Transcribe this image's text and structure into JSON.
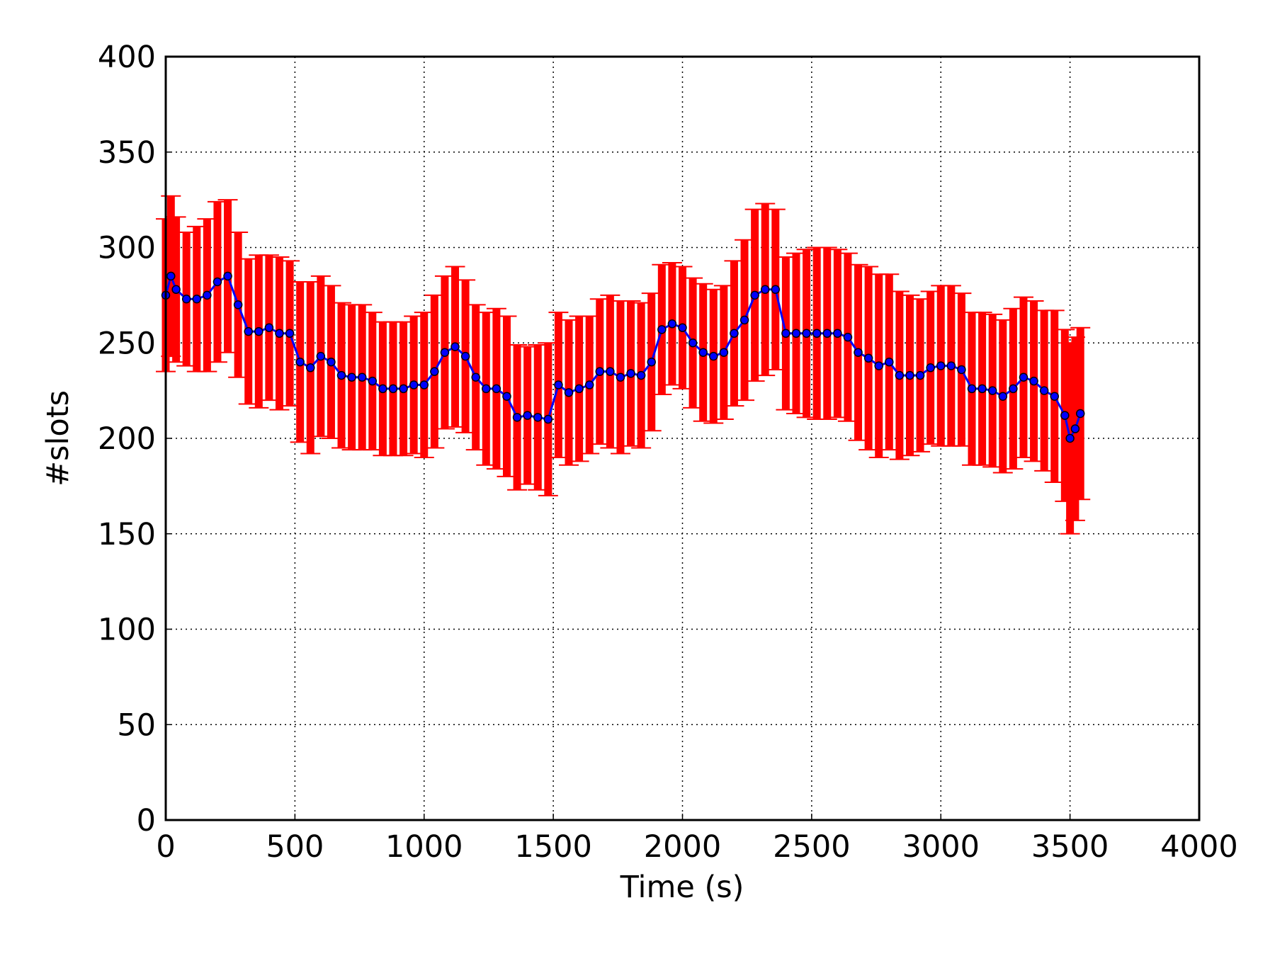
{
  "chart_data": {
    "type": "line",
    "xlabel": "Time (s)",
    "ylabel": "#slots",
    "x": [
      0,
      20,
      40,
      80,
      120,
      160,
      200,
      240,
      280,
      320,
      360,
      400,
      440,
      480,
      520,
      560,
      600,
      640,
      680,
      720,
      760,
      800,
      840,
      880,
      920,
      960,
      1000,
      1040,
      1080,
      1120,
      1160,
      1200,
      1240,
      1280,
      1320,
      1360,
      1400,
      1440,
      1480,
      1520,
      1560,
      1600,
      1640,
      1680,
      1720,
      1760,
      1800,
      1840,
      1880,
      1920,
      1960,
      2000,
      2040,
      2080,
      2120,
      2160,
      2200,
      2240,
      2280,
      2320,
      2360,
      2400,
      2440,
      2480,
      2520,
      2560,
      2600,
      2640,
      2680,
      2720,
      2760,
      2800,
      2840,
      2880,
      2920,
      2960,
      3000,
      3040,
      3080,
      3120,
      3160,
      3200,
      3240,
      3280,
      3320,
      3360,
      3400,
      3440,
      3480,
      3500,
      3520,
      3540
    ],
    "series": [
      {
        "color": "#0000ff",
        "marker_edge": "#000000",
        "error_color": "#ff0000",
        "values": [
          275,
          285,
          278,
          273,
          273,
          275,
          282,
          285,
          270,
          256,
          256,
          258,
          255,
          255,
          240,
          237,
          243,
          240,
          233,
          232,
          232,
          230,
          226,
          226,
          226,
          228,
          228,
          235,
          245,
          248,
          243,
          232,
          226,
          226,
          222,
          211,
          212,
          211,
          210,
          228,
          224,
          226,
          228,
          235,
          235,
          232,
          234,
          233,
          240,
          257,
          260,
          258,
          250,
          245,
          243,
          245,
          255,
          262,
          275,
          278,
          278,
          255,
          255,
          255,
          255,
          255,
          255,
          253,
          245,
          242,
          238,
          240,
          233,
          233,
          233,
          237,
          238,
          238,
          236,
          226,
          226,
          225,
          222,
          226,
          232,
          230,
          225,
          222,
          212,
          200,
          205,
          213
        ],
        "errors": [
          40,
          42,
          38,
          35,
          38,
          40,
          42,
          40,
          38,
          38,
          40,
          38,
          40,
          38,
          42,
          45,
          42,
          40,
          38,
          38,
          38,
          36,
          35,
          35,
          35,
          36,
          38,
          40,
          40,
          42,
          40,
          38,
          40,
          42,
          42,
          38,
          36,
          38,
          40,
          38,
          38,
          38,
          36,
          38,
          40,
          40,
          38,
          38,
          36,
          34,
          32,
          32,
          34,
          36,
          35,
          35,
          38,
          42,
          45,
          45,
          42,
          40,
          42,
          44,
          45,
          45,
          44,
          44,
          46,
          48,
          48,
          46,
          44,
          42,
          40,
          40,
          42,
          42,
          40,
          40,
          40,
          40,
          40,
          42,
          42,
          42,
          42,
          45,
          45,
          50,
          48,
          45
        ]
      }
    ],
    "xlim": [
      0,
      4000
    ],
    "xticks": [
      0,
      500,
      1000,
      1500,
      2000,
      2500,
      3000,
      3500,
      4000
    ],
    "ylim": [
      0,
      400
    ],
    "yticks": [
      0,
      50,
      100,
      150,
      200,
      250,
      300,
      350,
      400
    ],
    "grid": true
  }
}
